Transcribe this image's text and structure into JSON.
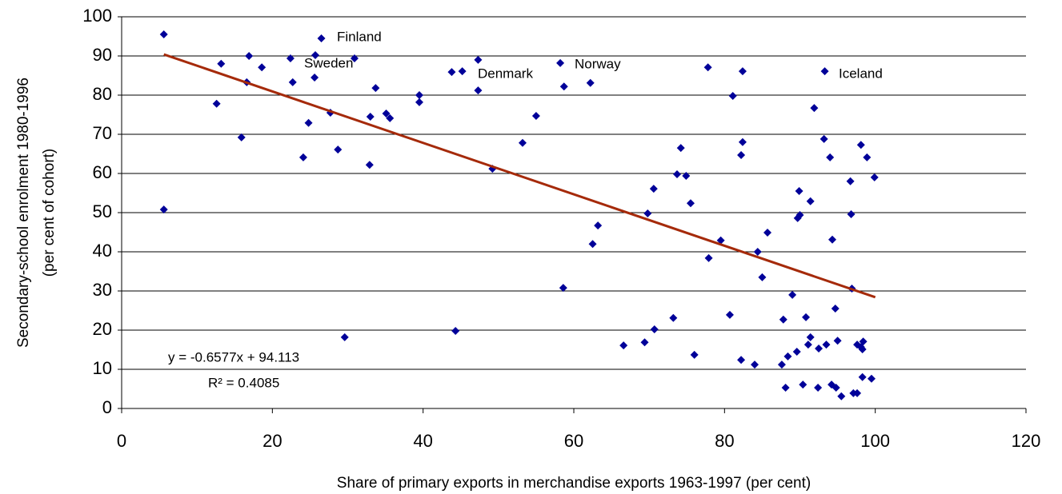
{
  "chart_data": {
    "type": "scatter",
    "xlabel": "Share of primary exports in merchandise exports 1963-1997 (per cent)",
    "ylabel": [
      "Secondary-school enrolment 1980-1996",
      "(per cent of cohort)"
    ],
    "xlim": [
      0,
      120
    ],
    "xticks": [
      0,
      20,
      40,
      60,
      80,
      100,
      120
    ],
    "ylim": [
      0,
      100
    ],
    "yticks": [
      0,
      10,
      20,
      30,
      40,
      50,
      60,
      70,
      80,
      90,
      100
    ],
    "grid": true,
    "color": "#000099",
    "x": [
      5.6,
      5.6,
      13.2,
      12.6,
      16.9,
      16.6,
      15.9,
      18.6,
      22.4,
      22.7,
      24.1,
      24.8,
      25.7,
      25.6,
      26.5,
      27.7,
      28.7,
      29.6,
      30.9,
      33.0,
      32.9,
      33.7,
      35.1,
      35.6,
      39.5,
      39.5,
      43.8,
      45.2,
      44.3,
      47.3,
      47.3,
      49.2,
      53.2,
      55.0,
      58.2,
      58.7,
      58.6,
      62.2,
      62.5,
      63.2,
      66.6,
      69.4,
      69.8,
      70.6,
      70.7,
      73.2,
      73.7,
      74.2,
      74.9,
      75.5,
      76.0,
      77.8,
      77.9,
      79.5,
      80.7,
      81.1,
      82.2,
      82.4,
      82.4,
      82.2,
      84.0,
      84.4,
      85.0,
      85.7,
      87.6,
      87.8,
      88.1,
      88.4,
      89.0,
      89.6,
      89.7,
      90.0,
      89.9,
      90.4,
      90.8,
      91.1,
      91.4,
      91.4,
      91.9,
      92.4,
      92.5,
      93.2,
      93.3,
      93.5,
      94.0,
      94.2,
      94.3,
      94.7,
      94.8,
      95.0,
      95.5,
      96.7,
      96.8,
      96.9,
      97.1,
      97.6,
      97.6,
      98.1,
      98.1,
      98.3,
      98.3,
      98.4,
      98.9,
      99.5,
      99.9
    ],
    "values": [
      95.5,
      50.8,
      88,
      77.8,
      90,
      83.3,
      69.2,
      87.1,
      89.4,
      83.3,
      64.1,
      72.9,
      90.2,
      84.5,
      94.5,
      75.5,
      66.1,
      18.2,
      89.4,
      74.5,
      62.2,
      81.8,
      75.3,
      74.1,
      80,
      78.2,
      85.9,
      86.1,
      19.8,
      89,
      81.2,
      61.2,
      67.8,
      74.7,
      88.2,
      82.2,
      30.8,
      83.1,
      42,
      46.7,
      16.1,
      16.9,
      49.8,
      56.1,
      20.2,
      23.1,
      59.8,
      66.5,
      59.4,
      52.4,
      13.7,
      87.1,
      38.4,
      42.9,
      23.9,
      79.8,
      64.7,
      68,
      86.1,
      12.4,
      11.2,
      40,
      33.5,
      44.9,
      11.2,
      22.7,
      5.3,
      13.3,
      29,
      14.5,
      48.6,
      49.4,
      55.5,
      6.1,
      23.3,
      16.3,
      18.2,
      52.9,
      76.7,
      5.3,
      15.3,
      68.8,
      86.1,
      16.3,
      64.1,
      6.1,
      43.1,
      25.5,
      5.3,
      17.3,
      3.1,
      58,
      49.6,
      30.6,
      3.9,
      3.9,
      16.3,
      67.3,
      15.7,
      15.1,
      8,
      17.1,
      64.1,
      7.6,
      59
    ],
    "trendline": {
      "x": [
        5.6,
        100
      ],
      "values": [
        90.4,
        28.4
      ],
      "color": "#a52a0a"
    },
    "annotations": [
      "Finland",
      "Sweden",
      "Denmark",
      "Norway",
      "Iceland",
      "y = -0.6577x + 94.113",
      "R² = 0.4085"
    ]
  }
}
